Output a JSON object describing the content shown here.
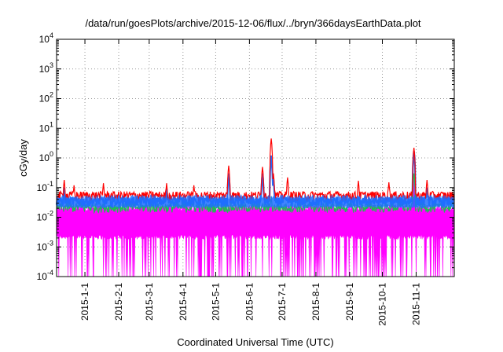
{
  "chart_data": {
    "type": "line",
    "title": "/data/run/goesPlots/archive/2015-12-06/flux/../bryn/366daysEarthData.plot",
    "xlabel": "Coordinated Universal Time (UTC)",
    "ylabel": "cGy/day",
    "y_scale": "log",
    "ylim_exp": [
      -4,
      4
    ],
    "y_tick_exponents": [
      -4,
      -3,
      -2,
      -1,
      0,
      1,
      2,
      3,
      4
    ],
    "xlim": [
      "2014-12-06",
      "2015-12-06"
    ],
    "x_ticks": [
      {
        "date": "2015-01-01",
        "label": "2015-1-1"
      },
      {
        "date": "2015-02-01",
        "label": "2015-2-1"
      },
      {
        "date": "2015-03-01",
        "label": "2015-3-1"
      },
      {
        "date": "2015-04-01",
        "label": "2015-4-1"
      },
      {
        "date": "2015-05-01",
        "label": "2015-5-1"
      },
      {
        "date": "2015-06-01",
        "label": "2015-6-1"
      },
      {
        "date": "2015-07-01",
        "label": "2015-7-1"
      },
      {
        "date": "2015-08-01",
        "label": "2015-8-1"
      },
      {
        "date": "2015-09-01",
        "label": "2015-9-1"
      },
      {
        "date": "2015-10-01",
        "label": "2015-10-1"
      },
      {
        "date": "2015-11-01",
        "label": "2015-11-1"
      }
    ],
    "grid": true,
    "series_colors": {
      "red": "#ff0000",
      "blue": "#1f6fff",
      "green": "#22bb55",
      "magenta": "#ff00ff"
    },
    "series": [
      {
        "color": "#ff0000",
        "baseline": 0.055,
        "peaks": [
          [
            "2014-12-13",
            0.18
          ],
          [
            "2014-12-22",
            0.12
          ],
          [
            "2015-01-18",
            0.14
          ],
          [
            "2015-03-17",
            0.14
          ],
          [
            "2015-04-11",
            0.12
          ],
          [
            "2015-05-13",
            0.55
          ],
          [
            "2015-06-13",
            0.5
          ],
          [
            "2015-06-21",
            4.5
          ],
          [
            "2015-06-23",
            0.3
          ],
          [
            "2015-07-06",
            0.22
          ],
          [
            "2015-09-09",
            0.17
          ],
          [
            "2015-10-07",
            0.15
          ],
          [
            "2015-10-30",
            2.2
          ],
          [
            "2015-11-11",
            0.18
          ]
        ]
      },
      {
        "color": "#1f6fff",
        "baseline": 0.035,
        "peaks": [
          [
            "2014-12-13",
            0.1
          ],
          [
            "2015-03-17",
            0.09
          ],
          [
            "2015-05-13",
            0.3
          ],
          [
            "2015-06-13",
            0.3
          ],
          [
            "2015-06-21",
            1.2
          ],
          [
            "2015-06-23",
            0.18
          ],
          [
            "2015-10-30",
            1.7
          ],
          [
            "2015-11-11",
            0.1
          ]
        ]
      },
      {
        "color": "#22bb55",
        "baseline": 0.022,
        "peaks": [
          [
            "2015-06-21",
            0.05
          ],
          [
            "2015-10-30",
            0.3
          ]
        ]
      },
      {
        "color": "#ff00ff",
        "baseline": 0.01,
        "floor": 0.002,
        "min": 0.0001,
        "peaks": [
          [
            "2015-10-30",
            0.25
          ]
        ]
      }
    ]
  }
}
